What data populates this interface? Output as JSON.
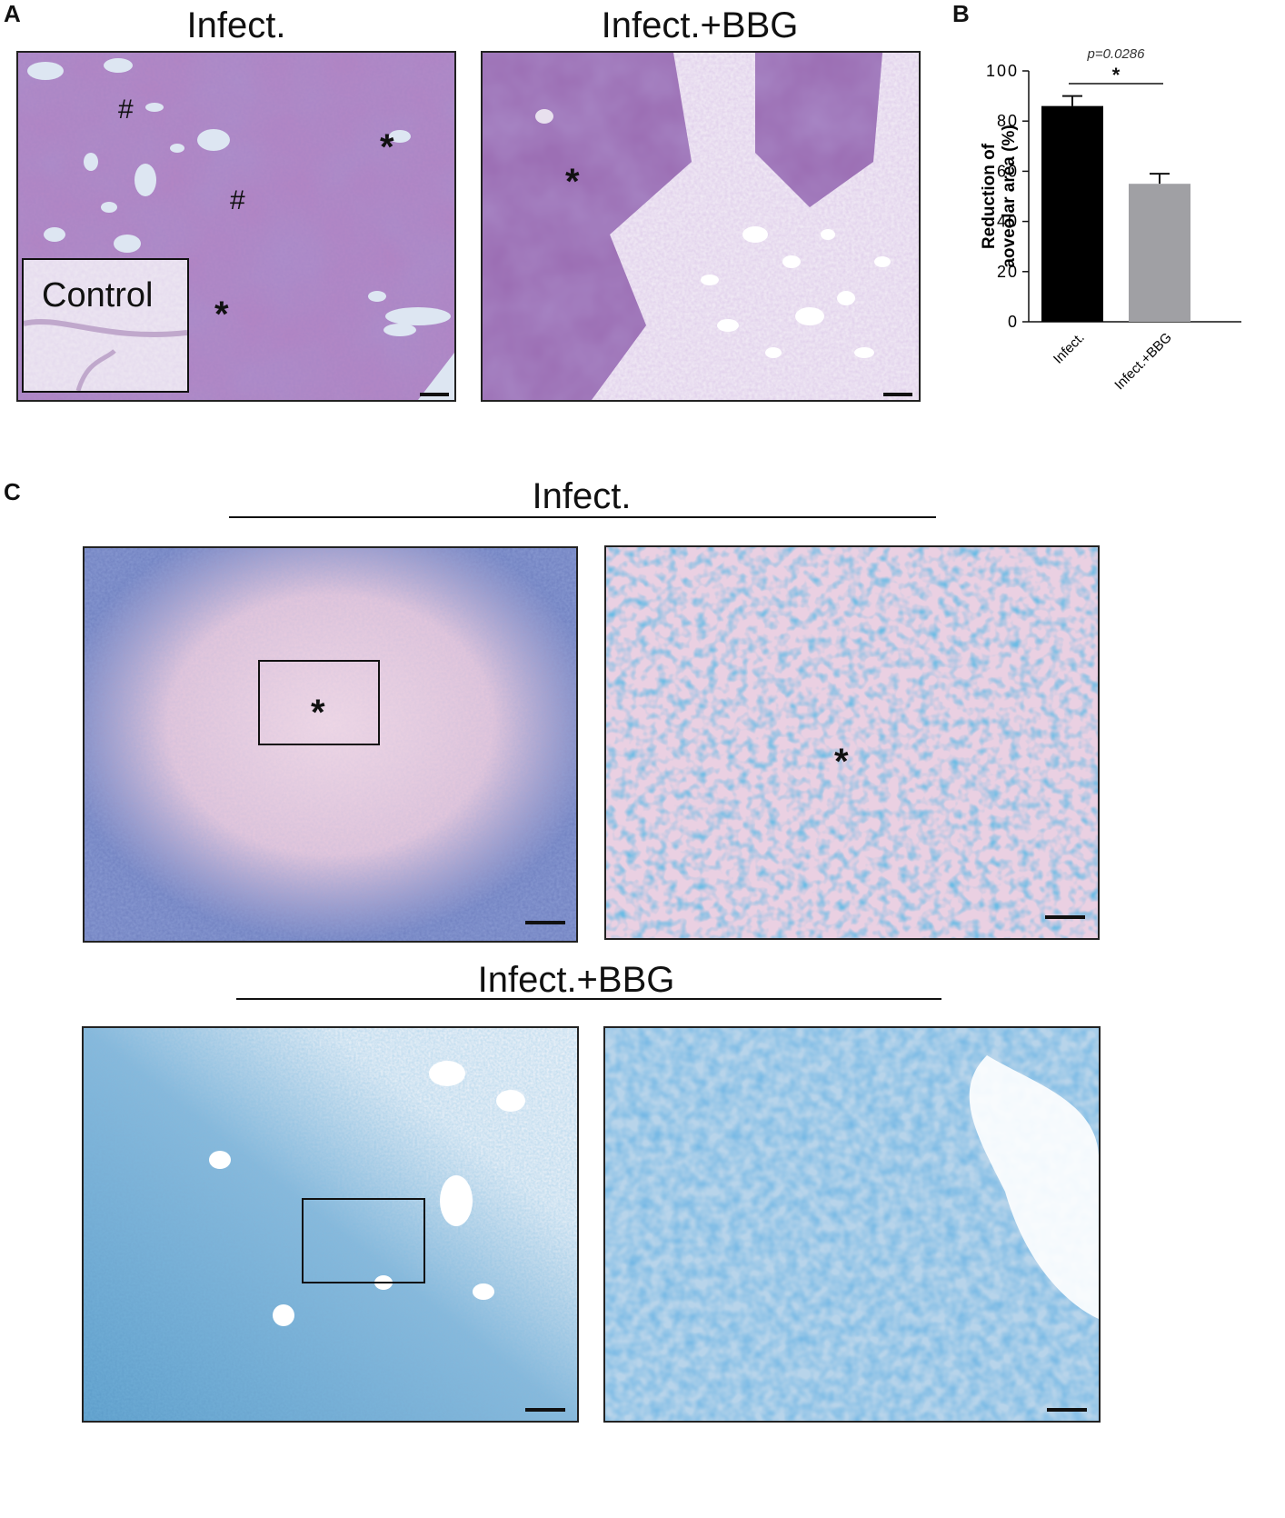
{
  "panels": {
    "A": {
      "letter": "A",
      "left_title": "Infect.",
      "right_title": "Infect.+BBG",
      "inset_label": "Control",
      "markers": [
        "#",
        "*",
        "#",
        "*",
        "*"
      ]
    },
    "B": {
      "letter": "B"
    },
    "C": {
      "letter": "C",
      "top_title": "Infect.",
      "bottom_title": "Infect.+BBG",
      "markers": [
        "*",
        "*"
      ]
    }
  },
  "chart_data": {
    "type": "bar",
    "categories": [
      "Infect.",
      "Infect.+BBG"
    ],
    "values": [
      86,
      55
    ],
    "errors": [
      4,
      4
    ],
    "bar_colors": [
      "#000000",
      "#a0a0a4"
    ],
    "ylabel_line1": "Reduction of",
    "ylabel_line2": "aoveolar area (%)",
    "ylim": [
      0,
      100
    ],
    "yticks": [
      "0",
      "20",
      "40",
      "60",
      "80",
      "100"
    ],
    "ytick_values": [
      0,
      20,
      40,
      60,
      80,
      100
    ],
    "significance": {
      "p_text": "p=0.0286",
      "star": "*"
    }
  },
  "colors": {
    "he_dark": "#6a4898",
    "he_light": "#c7a8d6",
    "blue_stain": "#3d8cc4",
    "pink_bg": "#e8c6dc"
  }
}
